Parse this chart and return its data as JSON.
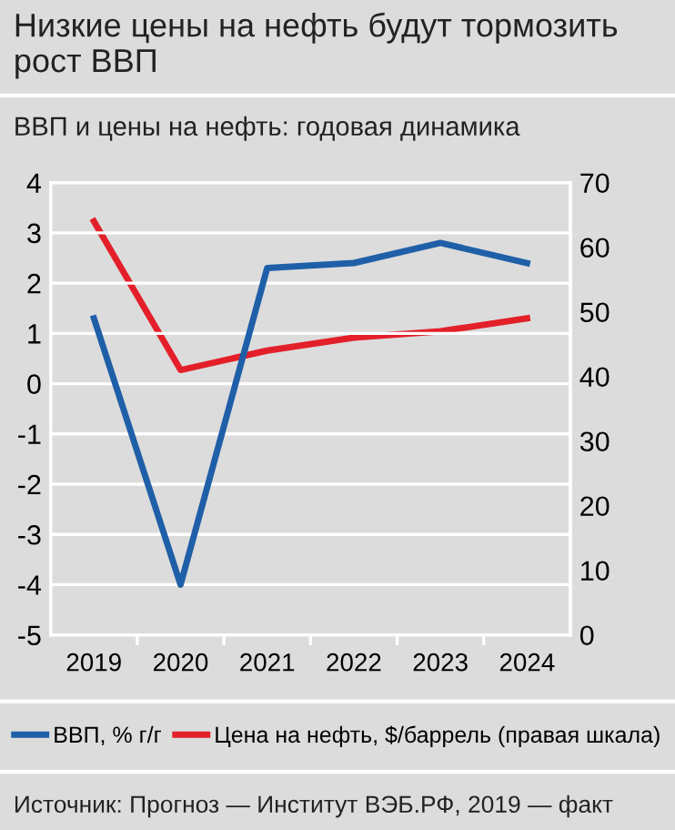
{
  "chart_data": {
    "type": "line",
    "title": "Низкие цены на нефть будут тормозить рост ВВП",
    "subtitle": "ВВП и цены на нефть: годовая динамика",
    "categories": [
      "2019",
      "2020",
      "2021",
      "2022",
      "2023",
      "2024"
    ],
    "series": [
      {
        "name": "ВВП, % г/г",
        "color": "#1f5fa8",
        "values": [
          1.3,
          -4.0,
          2.3,
          2.4,
          2.8,
          2.4
        ]
      },
      {
        "name": "Цена на нефть, $/баррель (правая шкала)",
        "color": "#e3202a",
        "axis": "y2",
        "values": [
          64,
          41,
          44,
          46,
          47,
          49
        ]
      }
    ],
    "ylim": [
      -5,
      4
    ],
    "yticks": [
      -5,
      -4,
      -3,
      -2,
      -1,
      0,
      1,
      2,
      3,
      4
    ],
    "y2lim": [
      0,
      70
    ],
    "y2ticks": [
      0,
      10,
      20,
      30,
      40,
      50,
      60,
      70
    ],
    "grid": "y",
    "legend": "bottom",
    "marker": "none",
    "line_style": "solid",
    "annotations": [
      "Источник: Прогноз — Институт ВЭБ.РФ, 2019 — факт"
    ]
  }
}
